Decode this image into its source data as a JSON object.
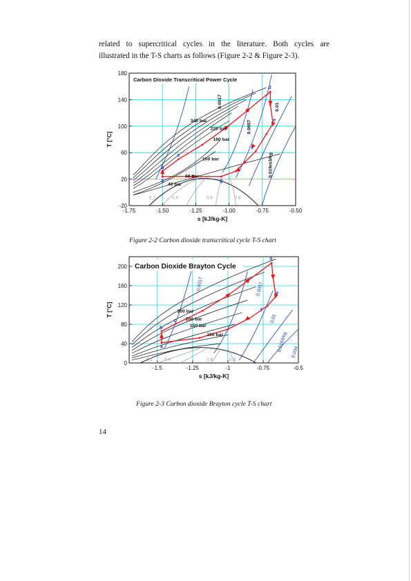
{
  "text": {
    "line1": "related to supercritical cycles in the literature. Both cycles are",
    "line2": "illustrated in the T-S charts as follows (Figure 2-2 & Figure 2-3)."
  },
  "page_number": "14",
  "captions": {
    "fig1": "Figure 2-2 Carbon dioxide transcritical cycle T-S chart",
    "fig2": "Figure 2-3 Carbon dioxide Brayton cycle T-S chart"
  },
  "colors": {
    "grid": "#22d3e6",
    "cycle": "#e8141a",
    "isobar": "#111111",
    "isochore": "#1b3fae",
    "quality": "#9a9a9a",
    "point_label": "#1f3fbf"
  },
  "chart_data": [
    {
      "type": "line",
      "title": "Carbon Dioxide Transcritical Power Cycle",
      "xlabel": "s [kJ/kg-K]",
      "ylabel": "T [°C]",
      "xlim": [
        -1.75,
        -0.5
      ],
      "ylim": [
        -20,
        180
      ],
      "xticks": [
        "-1.75",
        "-1.50",
        "-1.25",
        "-1.00",
        "-0.75",
        "-0.50"
      ],
      "yticks": [
        "-20",
        "20",
        "60",
        "100",
        "140",
        "180"
      ],
      "grid": true,
      "isobar_labels": [
        "340 bar",
        "220 bar",
        "160 bar",
        "100 bar",
        "60 bar",
        "40 bar"
      ],
      "isochore_labels": [
        "0.0017",
        "0.0057",
        "0.01",
        "0.019m3/kg"
      ],
      "quality_labels": [
        "0.2",
        "0.4",
        "0.6",
        "0.8"
      ],
      "points": [
        {
          "name": "a",
          "s": -1.5,
          "T": 24
        },
        {
          "name": "b",
          "s": -1.5,
          "T": 32
        },
        {
          "name": "c",
          "s": -1.38,
          "T": 50
        },
        {
          "name": "d",
          "s": -0.69,
          "T": 152
        },
        {
          "name": "e",
          "s": -0.67,
          "T": 104
        },
        {
          "name": "f",
          "s": -0.8,
          "T": 62
        },
        {
          "name": "g",
          "s": -1.06,
          "T": 24
        }
      ],
      "cycle": [
        {
          "s": -1.5,
          "T": 24
        },
        {
          "s": -1.5,
          "T": 32
        },
        {
          "s": -1.38,
          "T": 50
        },
        {
          "s": -1.2,
          "T": 72
        },
        {
          "s": -1.02,
          "T": 98
        },
        {
          "s": -0.86,
          "T": 124
        },
        {
          "s": -0.69,
          "T": 152
        },
        {
          "s": -0.69,
          "T": 132
        },
        {
          "s": -0.67,
          "T": 104
        },
        {
          "s": -0.72,
          "T": 88
        },
        {
          "s": -0.8,
          "T": 62
        },
        {
          "s": -0.88,
          "T": 46
        },
        {
          "s": -0.95,
          "T": 32
        },
        {
          "s": -1.06,
          "T": 24
        },
        {
          "s": -1.3,
          "T": 24
        },
        {
          "s": -1.5,
          "T": 24
        }
      ]
    },
    {
      "type": "line",
      "title": "Carbon Dioxide Brayton Cycle",
      "xlabel": "s [kJ/kg-K]",
      "ylabel": "T [°C]",
      "xlim": [
        -1.7,
        -0.5
      ],
      "ylim": [
        0,
        220
      ],
      "xticks": [
        "-1.5",
        "-1.25",
        "-1",
        "-0.75",
        "-0.5"
      ],
      "yticks": [
        "0",
        "40",
        "80",
        "120",
        "160",
        "200"
      ],
      "grid": true,
      "isobar_labels": [
        "300 bar",
        "200 bar",
        "150 bar",
        "100 bar"
      ],
      "isochore_labels": [
        "0,0017",
        "0,0057",
        "0,01",
        "0,0193/kg",
        "0,034"
      ],
      "quality_labels": [
        "0,2",
        "0,4",
        "0,6",
        "0,8"
      ],
      "points": [
        {
          "name": "a",
          "s": -1.47,
          "T": 42
        },
        {
          "name": "b",
          "s": -1.47,
          "T": 66
        },
        {
          "name": "c",
          "s": -1.37,
          "T": 81
        },
        {
          "name": "d",
          "s": -0.69,
          "T": 207
        },
        {
          "name": "e",
          "s": -0.66,
          "T": 138
        },
        {
          "name": "f",
          "s": -0.74,
          "T": 102
        }
      ],
      "cycle": [
        {
          "s": -1.47,
          "T": 42
        },
        {
          "s": -1.47,
          "T": 66
        },
        {
          "s": -1.37,
          "T": 81
        },
        {
          "s": -1.18,
          "T": 108
        },
        {
          "s": -1.0,
          "T": 140
        },
        {
          "s": -0.86,
          "T": 170
        },
        {
          "s": -0.69,
          "T": 207
        },
        {
          "s": -0.68,
          "T": 178
        },
        {
          "s": -0.66,
          "T": 138
        },
        {
          "s": -0.72,
          "T": 118
        },
        {
          "s": -0.85,
          "T": 92
        },
        {
          "s": -1.0,
          "T": 70
        },
        {
          "s": -1.2,
          "T": 52
        },
        {
          "s": -1.47,
          "T": 42
        }
      ]
    }
  ]
}
